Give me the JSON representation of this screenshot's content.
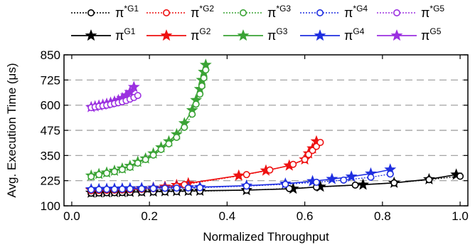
{
  "chart_data": {
    "type": "line",
    "xlabel": "Normalized Throughput",
    "ylabel": "Avg. Execution Time (μs)",
    "xlim": [
      -0.02,
      1.02
    ],
    "ylim": [
      100,
      850
    ],
    "xticks": [
      0.0,
      0.2,
      0.4,
      0.6,
      0.8,
      1.0
    ],
    "xtick_labels": [
      "0.0",
      "0.2",
      "0.4",
      "0.6",
      "0.8",
      "1.0"
    ],
    "yticks": [
      100,
      225,
      350,
      475,
      600,
      725,
      850
    ],
    "ytick_labels": [
      "100",
      "225",
      "350",
      "475",
      "600",
      "725",
      "850"
    ],
    "grid": "horizontal dashed",
    "legend_position": "top",
    "colors": {
      "G1": "#000000",
      "G2": "#ee1111",
      "G3": "#3aa335",
      "G4": "#1f2fe0",
      "G5": "#9b30e0"
    },
    "series": [
      {
        "name": "π*G1",
        "base": "π",
        "sup": "*G1",
        "group": "G1",
        "marker": "circle",
        "dash": "dotted",
        "x": [
          0.05,
          0.07,
          0.09,
          0.11,
          0.13,
          0.15,
          0.18,
          0.21,
          0.24,
          0.27,
          0.3,
          0.33,
          0.45,
          0.56,
          0.63,
          0.73,
          0.83,
          0.92,
          1.0
        ],
        "y": [
          163,
          164,
          165,
          165,
          166,
          167,
          168,
          169,
          170,
          171,
          172,
          173,
          178,
          186,
          193,
          203,
          214,
          230,
          247
        ]
      },
      {
        "name": "πG1",
        "base": "π",
        "sup": "G1",
        "group": "G1",
        "marker": "star",
        "dash": "solid",
        "x": [
          0.05,
          0.07,
          0.09,
          0.11,
          0.13,
          0.15,
          0.18,
          0.21,
          0.24,
          0.27,
          0.3,
          0.33,
          0.45,
          0.57,
          0.64,
          0.75,
          0.83,
          0.92,
          0.99
        ],
        "y": [
          165,
          166,
          167,
          168,
          168,
          169,
          170,
          171,
          172,
          173,
          174,
          175,
          178,
          185,
          195,
          205,
          214,
          232,
          255
        ]
      },
      {
        "name": "π*G2",
        "base": "π",
        "sup": "*G2",
        "group": "G2",
        "marker": "circle",
        "dash": "dotted",
        "x": [
          0.05,
          0.07,
          0.09,
          0.11,
          0.13,
          0.15,
          0.18,
          0.21,
          0.24,
          0.27,
          0.29,
          0.45,
          0.51,
          0.57,
          0.6,
          0.61,
          0.62,
          0.63,
          0.64
        ],
        "y": [
          175,
          176,
          177,
          178,
          179,
          180,
          182,
          185,
          190,
          198,
          205,
          255,
          278,
          306,
          330,
          355,
          375,
          395,
          415
        ]
      },
      {
        "name": "πG2",
        "base": "π",
        "sup": "G2",
        "group": "G2",
        "marker": "star",
        "dash": "solid",
        "x": [
          0.05,
          0.07,
          0.09,
          0.11,
          0.13,
          0.15,
          0.18,
          0.21,
          0.24,
          0.27,
          0.3,
          0.43,
          0.5,
          0.56,
          0.6,
          0.61,
          0.62,
          0.63
        ],
        "y": [
          178,
          179,
          180,
          181,
          182,
          183,
          186,
          190,
          195,
          203,
          212,
          250,
          275,
          300,
          330,
          360,
          385,
          420
        ]
      },
      {
        "name": "π*G3",
        "base": "π",
        "sup": "*G3",
        "group": "G3",
        "marker": "circle",
        "dash": "dotted",
        "x": [
          0.05,
          0.07,
          0.09,
          0.11,
          0.13,
          0.15,
          0.17,
          0.19,
          0.21,
          0.23,
          0.25,
          0.27,
          0.29,
          0.31,
          0.32,
          0.33,
          0.335,
          0.34,
          0.345
        ],
        "y": [
          245,
          255,
          262,
          270,
          280,
          292,
          312,
          330,
          352,
          380,
          408,
          440,
          490,
          555,
          605,
          655,
          695,
          735,
          775
        ]
      },
      {
        "name": "πG3",
        "base": "π",
        "sup": "G3",
        "group": "G3",
        "marker": "star",
        "dash": "solid",
        "x": [
          0.05,
          0.07,
          0.09,
          0.11,
          0.13,
          0.15,
          0.17,
          0.19,
          0.21,
          0.23,
          0.25,
          0.27,
          0.29,
          0.31,
          0.32,
          0.33,
          0.335,
          0.34,
          0.345
        ],
        "y": [
          250,
          258,
          265,
          274,
          285,
          298,
          318,
          335,
          360,
          390,
          420,
          455,
          510,
          575,
          625,
          680,
          725,
          765,
          800
        ]
      },
      {
        "name": "π*G4",
        "base": "π",
        "sup": "*G4",
        "group": "G4",
        "marker": "circle",
        "dash": "dotted",
        "x": [
          0.05,
          0.07,
          0.09,
          0.11,
          0.13,
          0.15,
          0.18,
          0.21,
          0.24,
          0.27,
          0.3,
          0.33,
          0.45,
          0.55,
          0.63,
          0.7,
          0.77,
          0.82
        ],
        "y": [
          180,
          181,
          182,
          182,
          183,
          184,
          185,
          186,
          187,
          188,
          189,
          190,
          198,
          207,
          217,
          228,
          242,
          258
        ]
      },
      {
        "name": "πG4",
        "base": "π",
        "sup": "G4",
        "group": "G4",
        "marker": "star",
        "dash": "solid",
        "x": [
          0.05,
          0.07,
          0.09,
          0.11,
          0.13,
          0.15,
          0.18,
          0.21,
          0.24,
          0.27,
          0.3,
          0.33,
          0.45,
          0.55,
          0.62,
          0.67,
          0.72,
          0.77,
          0.82
        ],
        "y": [
          182,
          183,
          184,
          185,
          186,
          187,
          188,
          189,
          190,
          191,
          192,
          193,
          200,
          210,
          222,
          233,
          245,
          260,
          280
        ]
      },
      {
        "name": "π*G5",
        "base": "π",
        "sup": "*G5",
        "group": "G5",
        "marker": "circle",
        "dash": "dotted",
        "x": [
          0.05,
          0.06,
          0.07,
          0.08,
          0.09,
          0.1,
          0.11,
          0.12,
          0.13,
          0.14,
          0.15,
          0.16,
          0.17
        ],
        "y": [
          588,
          591,
          594,
          597,
          600,
          604,
          608,
          612,
          617,
          623,
          630,
          638,
          648
        ]
      },
      {
        "name": "πG5",
        "base": "π",
        "sup": "G5",
        "group": "G5",
        "marker": "star",
        "dash": "solid",
        "x": [
          0.05,
          0.06,
          0.07,
          0.08,
          0.09,
          0.1,
          0.11,
          0.12,
          0.13,
          0.14,
          0.15,
          0.16
        ],
        "y": [
          590,
          594,
          598,
          602,
          607,
          612,
          618,
          625,
          635,
          648,
          665,
          690
        ]
      }
    ]
  }
}
